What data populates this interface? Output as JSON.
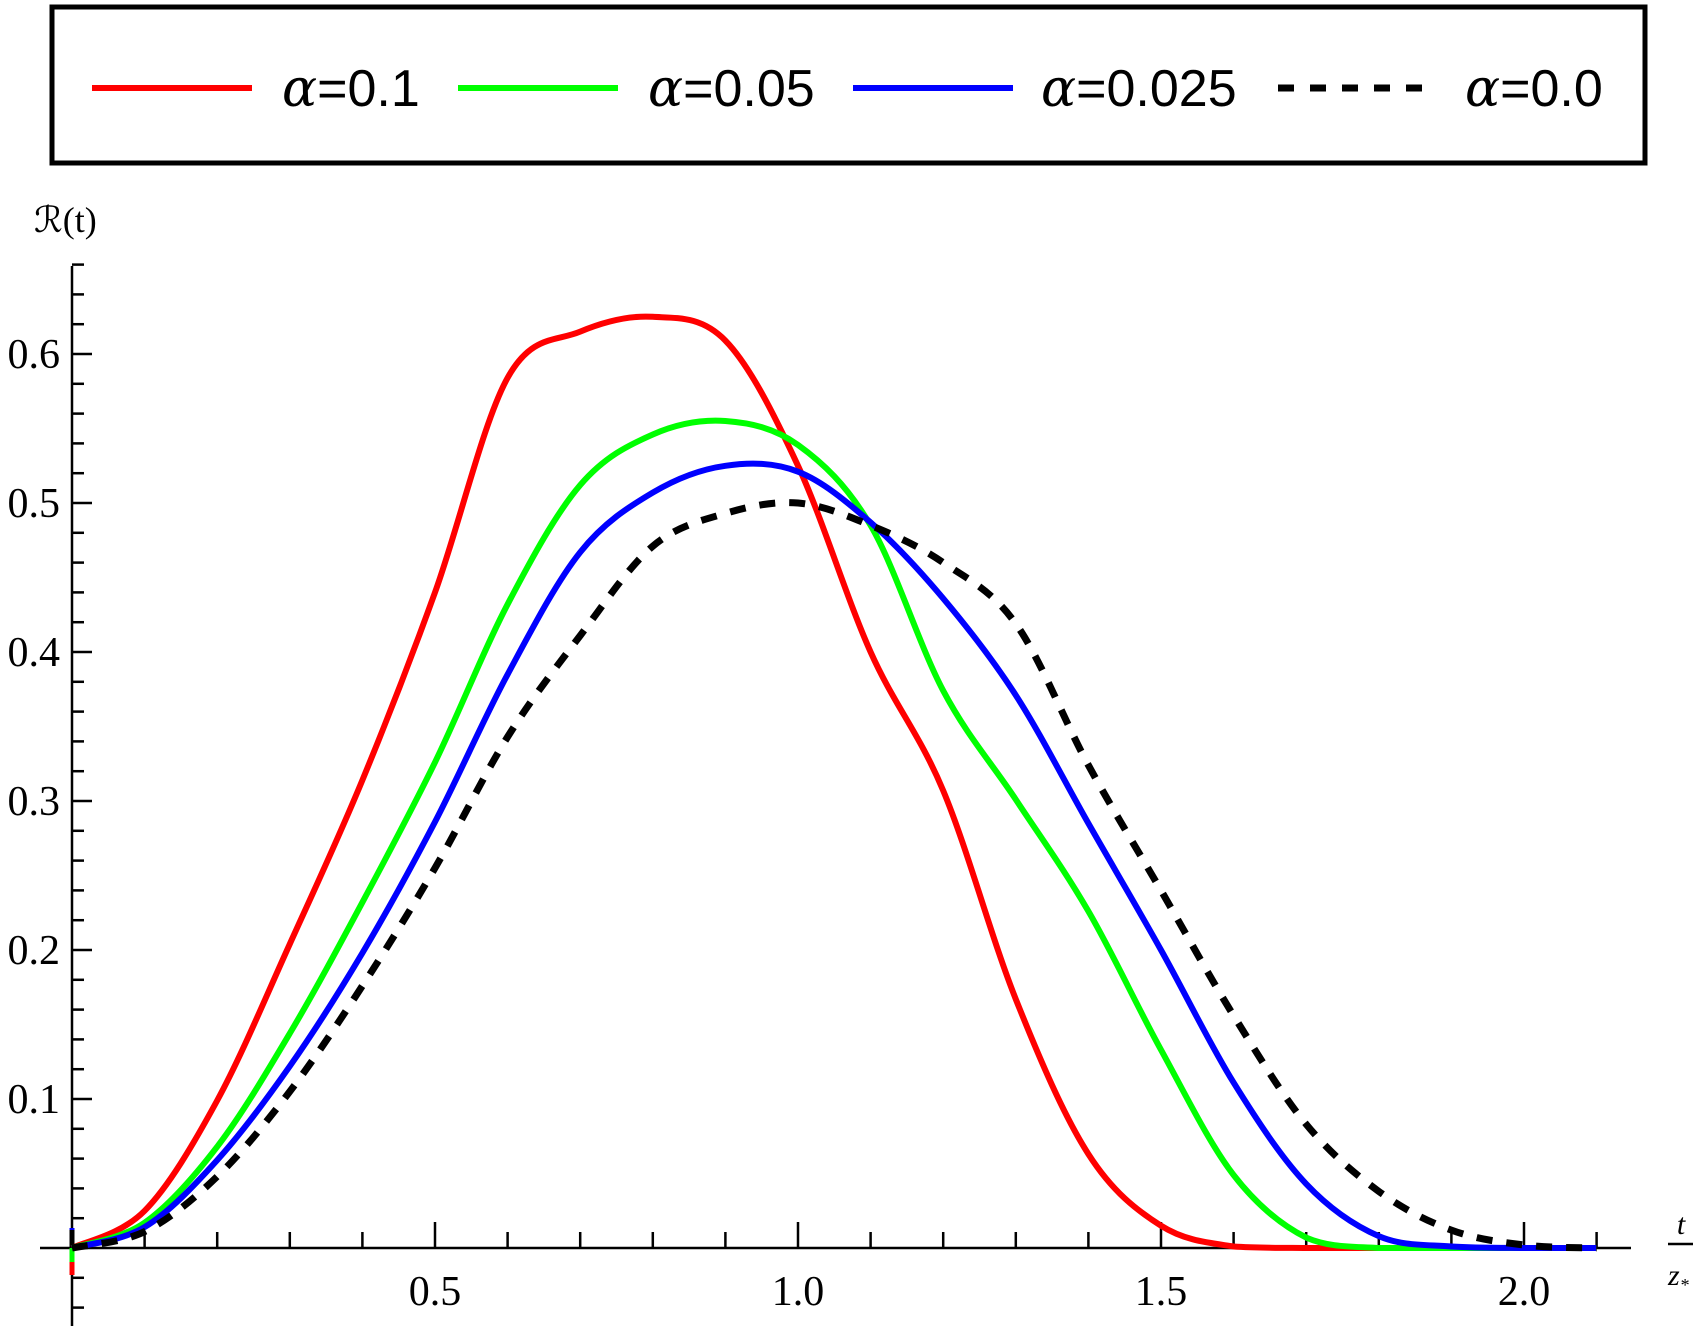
{
  "legend": {
    "items": [
      {
        "symbol": "α",
        "label": "=0.1",
        "color": "#ff0000",
        "dashed": false
      },
      {
        "symbol": "α",
        "label": "=0.05",
        "color": "#00ff00",
        "dashed": false
      },
      {
        "symbol": "α",
        "label": "=0.025",
        "color": "#0000ff",
        "dashed": false
      },
      {
        "symbol": "α",
        "label": "=0.0",
        "color": "#000000",
        "dashed": true
      }
    ]
  },
  "axes": {
    "y_label": "ℛ(t)",
    "x_label_numerator": "t",
    "x_label_denominator": "z",
    "x_label_subscript": "*",
    "x_ticks": [
      "0.5",
      "1.0",
      "1.5",
      "2.0"
    ],
    "y_ticks": [
      "0.1",
      "0.2",
      "0.3",
      "0.4",
      "0.5",
      "0.6"
    ]
  },
  "chart_data": {
    "type": "line",
    "title": "",
    "xlabel": "t / z*",
    "ylabel": "ℛ(t)",
    "xlim": [
      0,
      2.1
    ],
    "ylim": [
      -0.05,
      0.66
    ],
    "grid": false,
    "legend_position": "top (outside, framed box)",
    "x": [
      0,
      0.1,
      0.2,
      0.3,
      0.4,
      0.5,
      0.6,
      0.7,
      0.8,
      0.9,
      1.0,
      1.1,
      1.2,
      1.3,
      1.4,
      1.5,
      1.6,
      1.7,
      1.8,
      1.9,
      2.0,
      2.1
    ],
    "series": [
      {
        "name": "α=0.1",
        "color": "#ff0000",
        "style": "solid",
        "values": [
          0,
          0.025,
          0.099,
          0.204,
          0.314,
          0.44,
          0.584,
          0.615,
          0.625,
          0.609,
          0.525,
          0.4,
          0.307,
          0.167,
          0.063,
          0.015,
          0.001,
          0,
          0,
          0,
          0,
          0
        ]
      },
      {
        "name": "α=0.05",
        "color": "#00ff00",
        "style": "solid",
        "values": [
          0,
          0.017,
          0.068,
          0.144,
          0.232,
          0.326,
          0.432,
          0.512,
          0.546,
          0.555,
          0.539,
          0.485,
          0.374,
          0.301,
          0.226,
          0.133,
          0.049,
          0.007,
          0,
          0,
          0,
          0
        ]
      },
      {
        "name": "α=0.025",
        "color": "#0000ff",
        "style": "solid",
        "values": [
          0,
          0.014,
          0.059,
          0.122,
          0.198,
          0.286,
          0.385,
          0.467,
          0.507,
          0.525,
          0.521,
          0.487,
          0.436,
          0.371,
          0.285,
          0.2,
          0.111,
          0.043,
          0.008,
          0.001,
          0,
          0
        ]
      },
      {
        "name": "α=0.0",
        "color": "#000000",
        "style": "dashed",
        "values": [
          0,
          0.011,
          0.048,
          0.105,
          0.176,
          0.255,
          0.343,
          0.411,
          0.471,
          0.493,
          0.5,
          0.485,
          0.46,
          0.419,
          0.324,
          0.24,
          0.156,
          0.083,
          0.038,
          0.012,
          0.002,
          0
        ]
      }
    ]
  }
}
